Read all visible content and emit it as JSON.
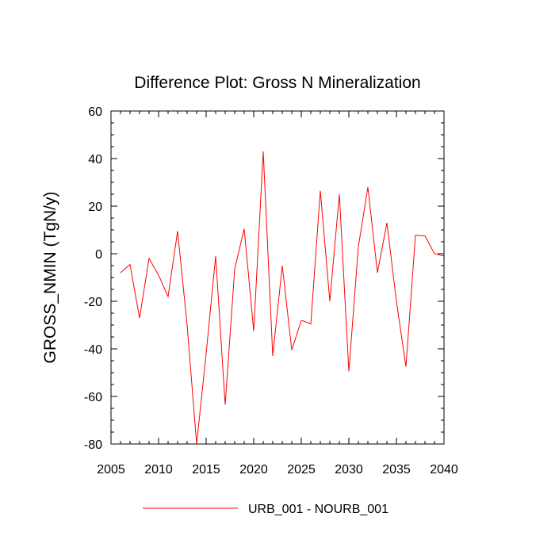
{
  "chart_data": {
    "type": "line",
    "title": "Difference Plot: Gross N Mineralization",
    "xlabel": "",
    "ylabel": "GROSS_NMIN  (TgN/y)",
    "xlim": [
      2005,
      2040
    ],
    "ylim": [
      -80,
      60
    ],
    "xticks": [
      2005,
      2010,
      2015,
      2020,
      2025,
      2030,
      2035,
      2040
    ],
    "yticks": [
      -80,
      -60,
      -40,
      -20,
      0,
      20,
      40,
      60
    ],
    "grid": false,
    "legend_position": "bottom-center",
    "series": [
      {
        "name": "URB_001 - NOURB_001",
        "color": "#ff0000",
        "x": [
          2006,
          2007,
          2008,
          2009,
          2010,
          2011,
          2012,
          2013,
          2014,
          2015,
          2016,
          2017,
          2018,
          2019,
          2020,
          2021,
          2022,
          2023,
          2024,
          2025,
          2026,
          2027,
          2028,
          2029,
          2030,
          2031,
          2032,
          2033,
          2034,
          2035,
          2036,
          2037,
          2038,
          2039,
          2040
        ],
        "values": [
          -8,
          -4.5,
          -27,
          -2,
          -9,
          -18,
          9.5,
          -30,
          -80,
          -42,
          -1,
          -63.5,
          -6.5,
          10.5,
          -32.5,
          43,
          -43,
          -5,
          -40.5,
          -28,
          -29.5,
          26.5,
          -20,
          25,
          -49.5,
          3,
          28,
          -8,
          13,
          -20,
          -47.5,
          7.8,
          7.5,
          0,
          -1
        ]
      }
    ]
  }
}
